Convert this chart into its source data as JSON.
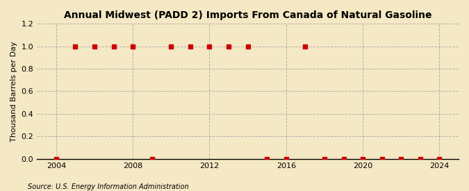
{
  "title": "Annual Midwest (PADD 2) Imports From Canada of Natural Gasoline",
  "ylabel": "Thousand Barrels per Day",
  "source": "Source: U.S. Energy Information Administration",
  "background_color": "#f5e8c4",
  "line_color": "#cc0000",
  "marker_color": "#cc0000",
  "grid_color": "#aaaaaa",
  "xlim": [
    2003,
    2025
  ],
  "ylim": [
    0.0,
    1.2
  ],
  "yticks": [
    0.0,
    0.2,
    0.4,
    0.6,
    0.8,
    1.0,
    1.2
  ],
  "xticks": [
    2004,
    2008,
    2012,
    2016,
    2020,
    2024
  ],
  "years": [
    2004,
    2005,
    2006,
    2007,
    2008,
    2009,
    2010,
    2011,
    2012,
    2013,
    2014,
    2015,
    2016,
    2017,
    2018,
    2019,
    2020,
    2021,
    2022,
    2023,
    2024
  ],
  "values": [
    0.0,
    1.0,
    1.0,
    1.0,
    1.0,
    0.0,
    1.0,
    1.0,
    1.0,
    1.0,
    1.0,
    0.0,
    0.0,
    1.0,
    0.0,
    0.0,
    0.0,
    0.0,
    0.0,
    0.0,
    0.0
  ]
}
